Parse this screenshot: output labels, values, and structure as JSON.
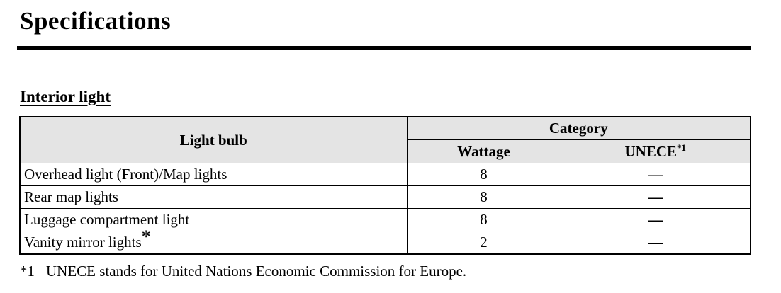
{
  "page": {
    "title": "Specifications",
    "section_heading": "Interior light"
  },
  "table": {
    "col1_header": "Light bulb",
    "group_header": "Category",
    "sub_headers": [
      "Wattage",
      "UNECE"
    ],
    "unece_superscript": "*1",
    "rows": [
      {
        "bulb": "Overhead light (Front)/Map lights",
        "bulb_marker": "",
        "wattage": "8",
        "unece": "—"
      },
      {
        "bulb": "Rear map lights",
        "bulb_marker": "",
        "wattage": "8",
        "unece": "—"
      },
      {
        "bulb": "Luggage compartment light",
        "bulb_marker": "",
        "wattage": "8",
        "unece": "—"
      },
      {
        "bulb": "Vanity mirror lights",
        "bulb_marker": "*",
        "wattage": "2",
        "unece": "—"
      }
    ],
    "colors": {
      "header_bg": "#e4e4e4",
      "border": "#000000"
    }
  },
  "footnote": {
    "marker": "*1",
    "text": "UNECE stands for United Nations Economic Commission for Europe."
  }
}
